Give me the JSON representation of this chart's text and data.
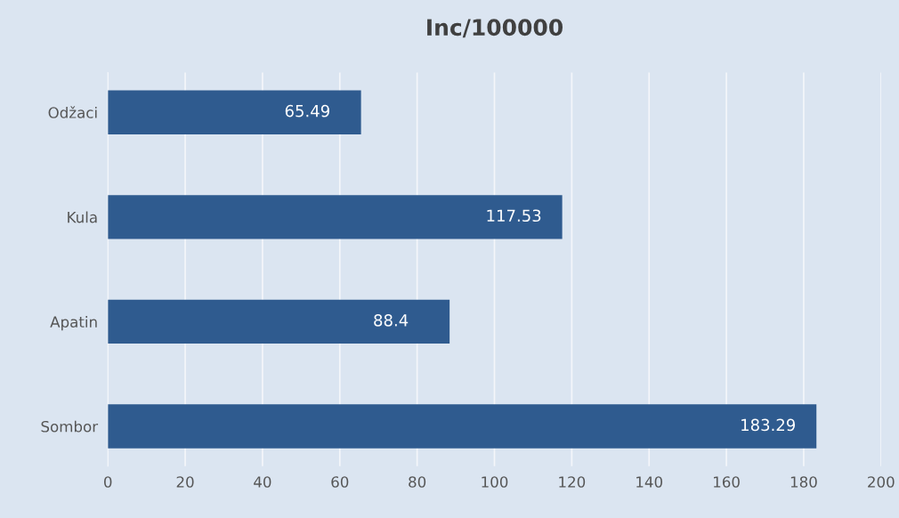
{
  "chart_data": {
    "type": "bar",
    "orientation": "horizontal",
    "title": "Inc/100000",
    "categories": [
      "Odžaci",
      "Kula",
      "Apatin",
      "Sombor"
    ],
    "values": [
      65.49,
      117.53,
      88.4,
      183.29
    ],
    "color": "#2f5b8f",
    "xlim": [
      0,
      200
    ],
    "xticks": [
      0,
      20,
      40,
      60,
      80,
      100,
      120,
      140,
      160,
      180,
      200
    ],
    "grid": "x",
    "data_labels": true
  }
}
